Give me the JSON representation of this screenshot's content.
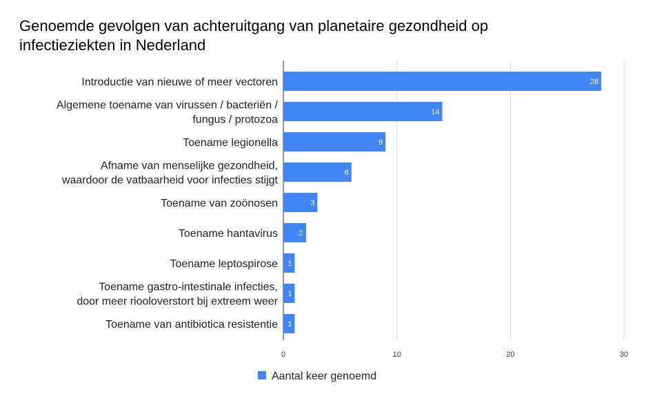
{
  "chart_data": {
    "type": "bar",
    "orientation": "horizontal",
    "title_lines": [
      "Genoemde gevolgen van achteruitgang van planetaire gezondheid op",
      "infectieziekten in Nederland"
    ],
    "categories": [
      [
        "Introductie van nieuwe of meer vectoren"
      ],
      [
        "Algemene toename van virussen / bacteriën /",
        "fungus / protozoa"
      ],
      [
        "Toename legionella"
      ],
      [
        "Afname van menselijke gezondheid,",
        "waardoor de vatbaarheid voor infecties stijgt"
      ],
      [
        "Toename van zoönosen"
      ],
      [
        "Toename hantavirus"
      ],
      [
        "Toename leptospirose"
      ],
      [
        "Toename gastro-intestinale infecties,",
        "door meer riooloverstort bij extreem weer"
      ],
      [
        "Toename van antibiotica resistentie"
      ]
    ],
    "series": [
      {
        "name": "Aantal keer genoemd",
        "color": "#4285f4",
        "values": [
          28,
          14,
          9,
          6,
          3,
          2,
          1,
          1,
          1
        ]
      }
    ],
    "xlim": [
      0,
      30
    ],
    "xticks": [
      0,
      10,
      20,
      30
    ],
    "grid": "vertical",
    "legend": "bottom-center",
    "data_labels": true
  }
}
